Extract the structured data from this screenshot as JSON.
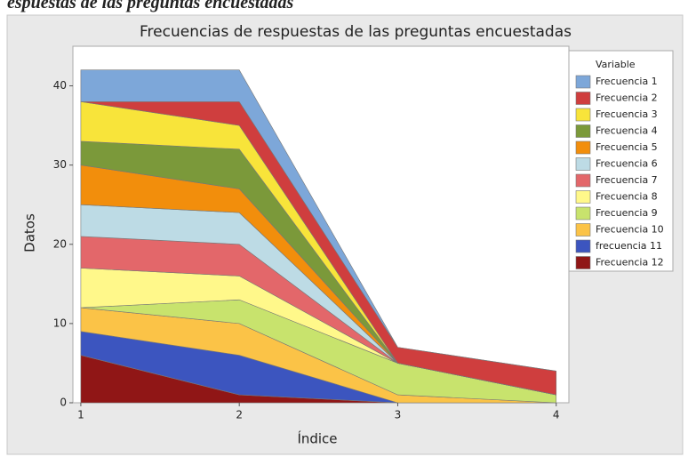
{
  "caption": "espuestas de las preguntas encuestadas",
  "chart_data": {
    "type": "stacked_area",
    "title": "Frecuencias de  respuestas de las preguntas encuestadas",
    "x_label": "Índice",
    "y_label": "Datos",
    "legend_title": "Variable",
    "x": [
      1,
      2,
      3,
      4
    ],
    "xlim": [
      0.95,
      4.08
    ],
    "xticks": [
      1,
      2,
      3,
      4
    ],
    "ylim": [
      0,
      45
    ],
    "yticks": [
      0,
      10,
      20,
      30,
      40
    ],
    "legend": "right",
    "series": [
      {
        "name": "Frecuencia 1",
        "color": "#7da7d9",
        "values": [
          4,
          4,
          0,
          0
        ]
      },
      {
        "name": "Frecuencia 2",
        "color": "#cf3e3e",
        "values": [
          0,
          3,
          2,
          3
        ]
      },
      {
        "name": "Frecuencia 3",
        "color": "#f8e43a",
        "values": [
          5,
          3,
          0,
          0
        ]
      },
      {
        "name": "Frecuencia 4",
        "color": "#7b993a",
        "values": [
          3,
          5,
          0,
          0
        ]
      },
      {
        "name": "Frecuencia 5",
        "color": "#f28e0c",
        "values": [
          5,
          3,
          0,
          0
        ]
      },
      {
        "name": "Frecuencia 6",
        "color": "#bddbe5",
        "values": [
          4,
          4,
          0,
          0
        ]
      },
      {
        "name": "Frecuencia 7",
        "color": "#e3676a",
        "values": [
          4,
          4,
          0,
          0
        ]
      },
      {
        "name": "Frecuencia 8",
        "color": "#fff88a",
        "values": [
          5,
          3,
          0,
          0
        ]
      },
      {
        "name": "Frecuencia 9",
        "color": "#c8e36d",
        "values": [
          0,
          3,
          4,
          1
        ]
      },
      {
        "name": "Frecuencia 10",
        "color": "#fbc347",
        "values": [
          3,
          4,
          1,
          0
        ]
      },
      {
        "name": "frecuencia 11",
        "color": "#3c55bf",
        "values": [
          3,
          5,
          0,
          0
        ]
      },
      {
        "name": "Frecuencia 12",
        "color": "#901616",
        "values": [
          6,
          1,
          0,
          0
        ]
      }
    ]
  }
}
